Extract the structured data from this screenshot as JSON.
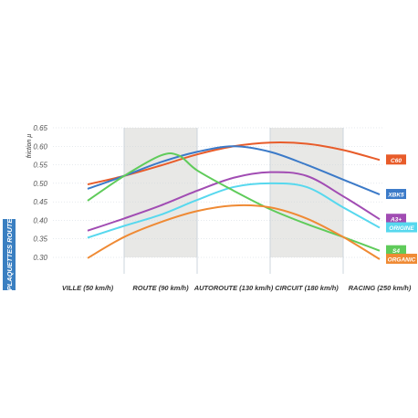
{
  "side_label": "PLAQUETTES ROUTE",
  "colors": {
    "band": "#e8e8e6",
    "grid": "#ccd4dc",
    "side_label_bg": "#3a7fc1"
  },
  "chart_data": {
    "type": "line",
    "ylabel": "friction µ",
    "ylim": [
      0.3,
      0.65
    ],
    "yticks": [
      "0.30",
      "0.35",
      "0.40",
      "0.45",
      "0.50",
      "0.55",
      "0.60",
      "0.65"
    ],
    "categories": [
      "VILLE (50 km/h)",
      "ROUTE (90 km/h)",
      "AUTOROUTE (130 km/h)",
      "CIRCUIT (180 km/h)",
      "RACING (250 km/h)"
    ],
    "shaded_bands": [
      [
        0.5,
        1.5
      ],
      [
        2.5,
        3.5
      ]
    ],
    "grid": true,
    "legend": "right",
    "series": [
      {
        "name": "C60",
        "color": "#e85c2a",
        "points": [
          [
            0,
            0.497
          ],
          [
            0.5,
            0.52
          ],
          [
            1,
            0.548
          ],
          [
            1.5,
            0.578
          ],
          [
            2,
            0.6
          ],
          [
            2.5,
            0.61
          ],
          [
            3,
            0.607
          ],
          [
            3.5,
            0.59
          ],
          [
            4,
            0.563
          ]
        ]
      },
      {
        "name": "XBK5",
        "color": "#3b7ac8",
        "points": [
          [
            0,
            0.485
          ],
          [
            0.5,
            0.52
          ],
          [
            1,
            0.557
          ],
          [
            1.5,
            0.585
          ],
          [
            2,
            0.6
          ],
          [
            2.5,
            0.585
          ],
          [
            3,
            0.55
          ],
          [
            3.5,
            0.51
          ],
          [
            4,
            0.47
          ]
        ]
      },
      {
        "name": "A3+",
        "color": "#a14cb3",
        "points": [
          [
            0,
            0.372
          ],
          [
            0.5,
            0.405
          ],
          [
            1,
            0.44
          ],
          [
            1.5,
            0.48
          ],
          [
            2,
            0.515
          ],
          [
            2.5,
            0.53
          ],
          [
            3,
            0.52
          ],
          [
            3.5,
            0.465
          ],
          [
            4,
            0.403
          ]
        ]
      },
      {
        "name": "ORIGINE",
        "color": "#57d8ee",
        "points": [
          [
            0,
            0.353
          ],
          [
            0.5,
            0.385
          ],
          [
            1,
            0.415
          ],
          [
            1.5,
            0.455
          ],
          [
            2,
            0.49
          ],
          [
            2.5,
            0.5
          ],
          [
            3,
            0.49
          ],
          [
            3.5,
            0.435
          ],
          [
            4,
            0.38
          ]
        ]
      },
      {
        "name": "S4",
        "color": "#5fcb5a",
        "points": [
          [
            0,
            0.453
          ],
          [
            0.5,
            0.52
          ],
          [
            1,
            0.575
          ],
          [
            1.25,
            0.575
          ],
          [
            1.5,
            0.535
          ],
          [
            2,
            0.48
          ],
          [
            2.5,
            0.43
          ],
          [
            3,
            0.39
          ],
          [
            3.5,
            0.355
          ],
          [
            4,
            0.318
          ]
        ]
      },
      {
        "name": "ORGANIC",
        "color": "#ef8a34",
        "points": [
          [
            0,
            0.298
          ],
          [
            0.5,
            0.355
          ],
          [
            1,
            0.395
          ],
          [
            1.5,
            0.425
          ],
          [
            2,
            0.44
          ],
          [
            2.5,
            0.435
          ],
          [
            3,
            0.405
          ],
          [
            3.5,
            0.355
          ],
          [
            4,
            0.295
          ]
        ]
      }
    ]
  }
}
